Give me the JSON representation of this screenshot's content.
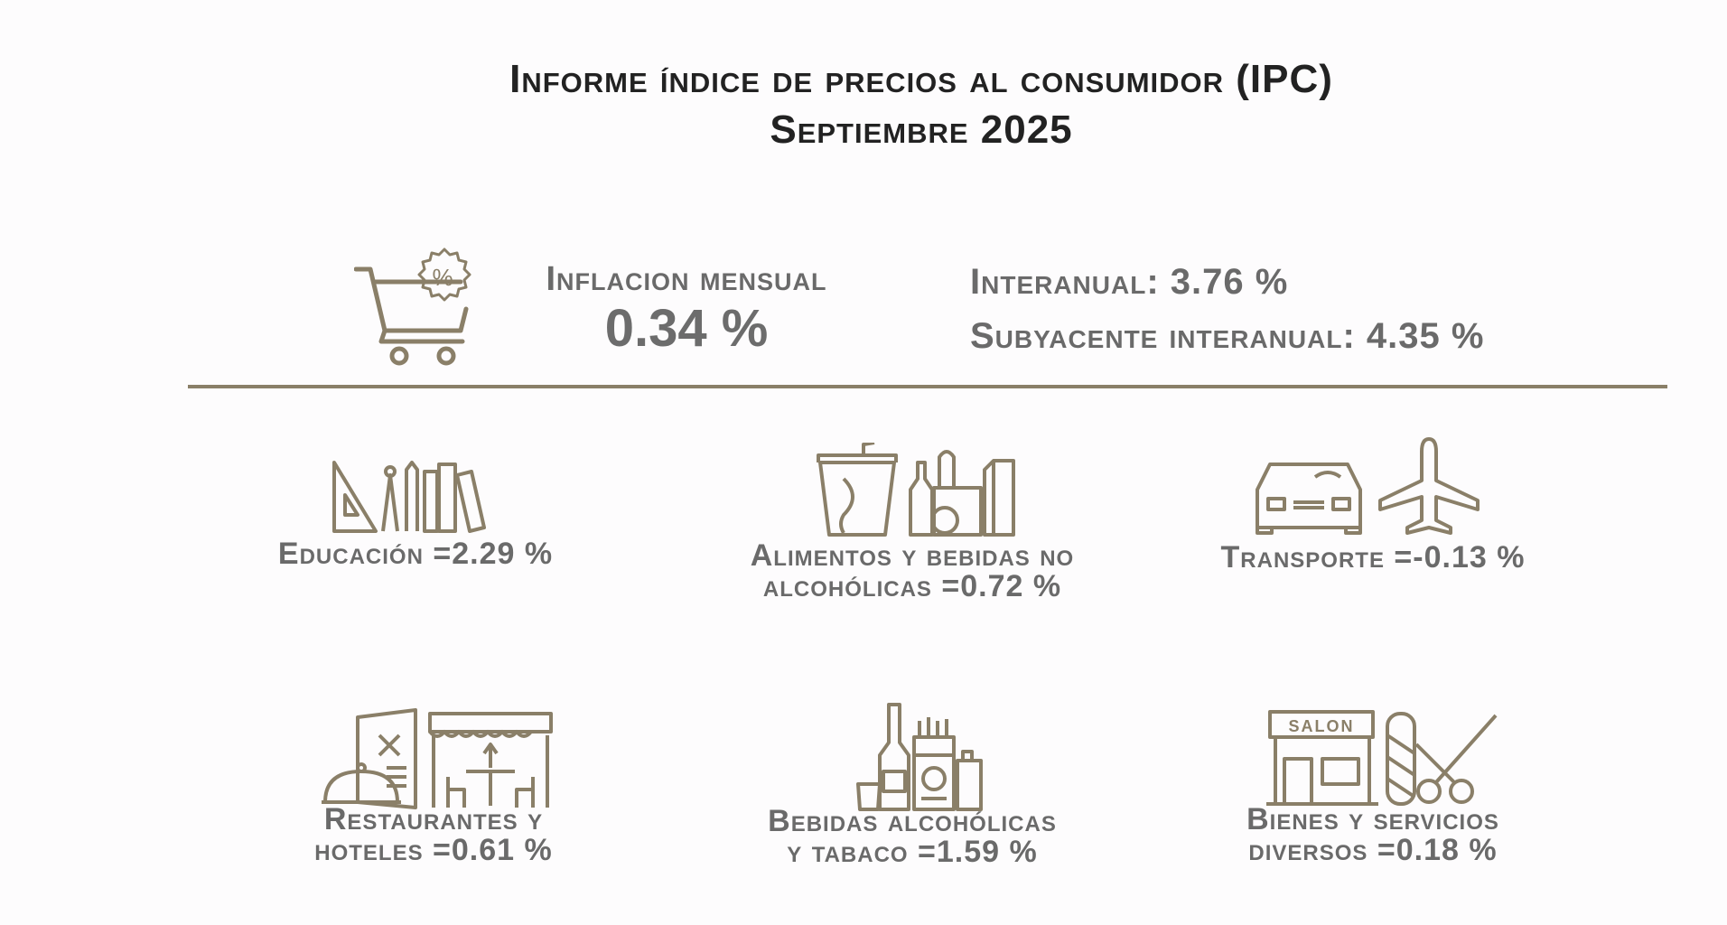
{
  "header": {
    "title_line1": "Informe índice de precios al consumidor (IPC)",
    "title_line2": "Septiembre 2025"
  },
  "summary": {
    "monthly_label": "Inflacion mensual",
    "monthly_value": "0.34 %",
    "annual_label": "Interanual",
    "annual_value": "3.76 %",
    "core_label": "Subyacente interanual",
    "core_value": "4.35 %"
  },
  "categories": [
    {
      "line1": "Educación =2.29 %",
      "line2": "",
      "icon": "school-supplies-icon"
    },
    {
      "line1": "Alimentos y bebidas no",
      "line2": "alcohólicas =0.72 %",
      "icon": "groceries-icon"
    },
    {
      "line1": "Transporte =-0.13 %",
      "line2": "",
      "icon": "car-plane-icon"
    },
    {
      "line1": "Restaurantes y",
      "line2": "hoteles =0.61 %",
      "icon": "restaurant-icon"
    },
    {
      "line1": "Bebidas alcohólicas",
      "line2": "y tabaco =1.59 %",
      "icon": "alcohol-tobacco-icon"
    },
    {
      "line1": "Bienes y servicios",
      "line2": "diversos =0.18 %",
      "icon": "salon-icon"
    }
  ],
  "icon_color": "#8a7f68",
  "icon_labels": {
    "percent_badge": "%",
    "salon_sign": "SALON"
  }
}
